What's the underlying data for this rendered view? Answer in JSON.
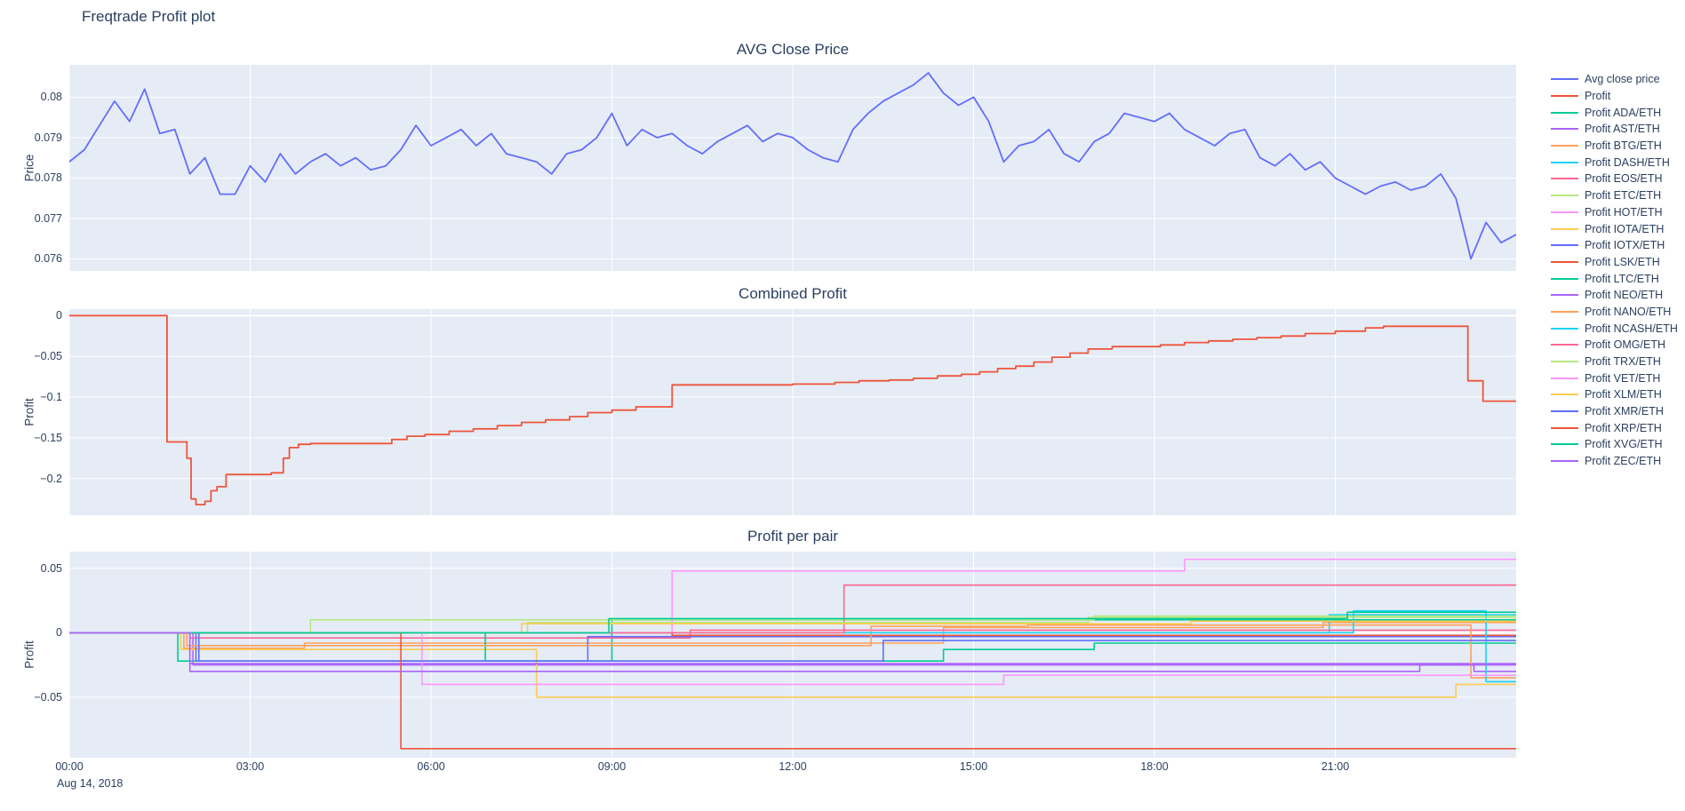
{
  "page": {
    "title": "Freqtrade Profit plot"
  },
  "colors": {
    "background": "#ffffff",
    "plot_bg": "#e5ecf6",
    "grid": "#ffffff",
    "text": "#2a3f5f",
    "palette": [
      "#636efa",
      "#EF553B",
      "#00cc96",
      "#ab63fa",
      "#FFA15A",
      "#19d3f3",
      "#FF6692",
      "#B6E880",
      "#FF97FF",
      "#FECB52"
    ]
  },
  "x_axis": {
    "range": [
      0,
      24
    ],
    "ticks": [
      "00:00",
      "03:00",
      "06:00",
      "09:00",
      "12:00",
      "15:00",
      "18:00",
      "21:00"
    ],
    "tick_hours": [
      0,
      3,
      6,
      9,
      12,
      15,
      18,
      21
    ],
    "date_label": "Aug 14, 2018"
  },
  "legend": {
    "position": "right",
    "items": [
      {
        "label": "Avg close price",
        "color": "#636efa"
      },
      {
        "label": "Profit",
        "color": "#EF553B"
      },
      {
        "label": "Profit ADA/ETH",
        "color": "#00cc96"
      },
      {
        "label": "Profit AST/ETH",
        "color": "#ab63fa"
      },
      {
        "label": "Profit BTG/ETH",
        "color": "#FFA15A"
      },
      {
        "label": "Profit DASH/ETH",
        "color": "#19d3f3"
      },
      {
        "label": "Profit EOS/ETH",
        "color": "#FF6692"
      },
      {
        "label": "Profit ETC/ETH",
        "color": "#B6E880"
      },
      {
        "label": "Profit HOT/ETH",
        "color": "#FF97FF"
      },
      {
        "label": "Profit IOTA/ETH",
        "color": "#FECB52"
      },
      {
        "label": "Profit IOTX/ETH",
        "color": "#636efa"
      },
      {
        "label": "Profit LSK/ETH",
        "color": "#EF553B"
      },
      {
        "label": "Profit LTC/ETH",
        "color": "#00cc96"
      },
      {
        "label": "Profit NEO/ETH",
        "color": "#ab63fa"
      },
      {
        "label": "Profit NANO/ETH",
        "color": "#FFA15A"
      },
      {
        "label": "Profit NCASH/ETH",
        "color": "#19d3f3"
      },
      {
        "label": "Profit OMG/ETH",
        "color": "#FF6692"
      },
      {
        "label": "Profit TRX/ETH",
        "color": "#B6E880"
      },
      {
        "label": "Profit VET/ETH",
        "color": "#FF97FF"
      },
      {
        "label": "Profit XLM/ETH",
        "color": "#FECB52"
      },
      {
        "label": "Profit XMR/ETH",
        "color": "#636efa"
      },
      {
        "label": "Profit XRP/ETH",
        "color": "#EF553B"
      },
      {
        "label": "Profit XVG/ETH",
        "color": "#00cc96"
      },
      {
        "label": "Profit ZEC/ETH",
        "color": "#ab63fa"
      }
    ]
  },
  "chart_data": [
    {
      "type": "line",
      "title": "AVG Close Price",
      "ylabel": "Price",
      "yticks": [
        0.08,
        0.079,
        0.078,
        0.077,
        0.076
      ],
      "ylim": [
        0.0757,
        0.0808
      ],
      "grid": true,
      "series": [
        {
          "name": "Avg close price",
          "color": "#636efa",
          "mode": "linear",
          "x_start": 0,
          "x_step": 0.25,
          "y": [
            0.0784,
            0.0787,
            0.0793,
            0.0799,
            0.0794,
            0.0802,
            0.0791,
            0.0792,
            0.0781,
            0.0785,
            0.0776,
            0.0776,
            0.0783,
            0.0779,
            0.0786,
            0.0781,
            0.0784,
            0.0786,
            0.0783,
            0.0785,
            0.0782,
            0.0783,
            0.0787,
            0.0793,
            0.0788,
            0.079,
            0.0792,
            0.0788,
            0.0791,
            0.0786,
            0.0785,
            0.0784,
            0.0781,
            0.0786,
            0.0787,
            0.079,
            0.0796,
            0.0788,
            0.0792,
            0.079,
            0.0791,
            0.0788,
            0.0786,
            0.0789,
            0.0791,
            0.0793,
            0.0789,
            0.0791,
            0.079,
            0.0787,
            0.0785,
            0.0784,
            0.0792,
            0.0796,
            0.0799,
            0.0801,
            0.0803,
            0.0806,
            0.0801,
            0.0798,
            0.08,
            0.0794,
            0.0784,
            0.0788,
            0.0789,
            0.0792,
            0.0786,
            0.0784,
            0.0789,
            0.0791,
            0.0796,
            0.0795,
            0.0794,
            0.0796,
            0.0792,
            0.079,
            0.0788,
            0.0791,
            0.0792,
            0.0785,
            0.0783,
            0.0786,
            0.0782,
            0.0784,
            0.078,
            0.0778,
            0.0776,
            0.0778,
            0.0779,
            0.0777,
            0.0778,
            0.0781,
            0.0775,
            0.076,
            0.0769,
            0.0764,
            0.0766
          ]
        }
      ]
    },
    {
      "type": "line",
      "title": "Combined Profit",
      "ylabel": "Profit",
      "yticks": [
        0,
        -0.05,
        -0.1,
        -0.15,
        -0.2
      ],
      "ylim": [
        -0.245,
        0.008
      ],
      "grid": true,
      "series": [
        {
          "name": "Profit",
          "color": "#EF553B",
          "mode": "step",
          "points": [
            [
              0,
              0
            ],
            [
              1.62,
              -0.155
            ],
            [
              1.95,
              -0.175
            ],
            [
              2.02,
              -0.225
            ],
            [
              2.1,
              -0.232
            ],
            [
              2.25,
              -0.228
            ],
            [
              2.35,
              -0.215
            ],
            [
              2.45,
              -0.21
            ],
            [
              2.6,
              -0.195
            ],
            [
              3.35,
              -0.193
            ],
            [
              3.55,
              -0.175
            ],
            [
              3.65,
              -0.162
            ],
            [
              3.8,
              -0.158
            ],
            [
              4.0,
              -0.157
            ],
            [
              5.35,
              -0.152
            ],
            [
              5.6,
              -0.148
            ],
            [
              5.9,
              -0.146
            ],
            [
              6.3,
              -0.142
            ],
            [
              6.7,
              -0.139
            ],
            [
              7.1,
              -0.135
            ],
            [
              7.5,
              -0.131
            ],
            [
              7.9,
              -0.128
            ],
            [
              8.3,
              -0.124
            ],
            [
              8.6,
              -0.119
            ],
            [
              9.0,
              -0.116
            ],
            [
              9.4,
              -0.112
            ],
            [
              10.0,
              -0.085
            ],
            [
              12.0,
              -0.084
            ],
            [
              12.7,
              -0.082
            ],
            [
              13.1,
              -0.08
            ],
            [
              13.6,
              -0.079
            ],
            [
              14.0,
              -0.077
            ],
            [
              14.4,
              -0.074
            ],
            [
              14.8,
              -0.072
            ],
            [
              15.1,
              -0.069
            ],
            [
              15.4,
              -0.065
            ],
            [
              15.7,
              -0.062
            ],
            [
              16.0,
              -0.057
            ],
            [
              16.3,
              -0.051
            ],
            [
              16.6,
              -0.046
            ],
            [
              16.9,
              -0.041
            ],
            [
              17.3,
              -0.038
            ],
            [
              18.1,
              -0.036
            ],
            [
              18.5,
              -0.033
            ],
            [
              18.9,
              -0.031
            ],
            [
              19.3,
              -0.029
            ],
            [
              19.7,
              -0.027
            ],
            [
              20.1,
              -0.025
            ],
            [
              20.5,
              -0.022
            ],
            [
              21.0,
              -0.019
            ],
            [
              21.5,
              -0.015
            ],
            [
              21.8,
              -0.013
            ],
            [
              23.2,
              -0.08
            ],
            [
              23.45,
              -0.105
            ],
            [
              24,
              -0.106
            ]
          ]
        }
      ]
    },
    {
      "type": "line",
      "title": "Profit per pair",
      "ylabel": "Profit",
      "yticks": [
        0.05,
        0,
        -0.05
      ],
      "ylim": [
        -0.097,
        0.063
      ],
      "grid": true,
      "series": [
        {
          "name": "Profit ADA/ETH",
          "color": "#00cc96",
          "mode": "step",
          "points": [
            [
              0,
              0
            ],
            [
              1.8,
              -0.022
            ],
            [
              9.0,
              0.01
            ],
            [
              24,
              0.01
            ]
          ]
        },
        {
          "name": "Profit AST/ETH",
          "color": "#ab63fa",
          "mode": "step",
          "points": [
            [
              0,
              0
            ],
            [
              2.05,
              -0.025
            ],
            [
              23.3,
              -0.03
            ],
            [
              24,
              -0.03
            ]
          ]
        },
        {
          "name": "Profit BTG/ETH",
          "color": "#FFA15A",
          "mode": "step",
          "points": [
            [
              0,
              0
            ],
            [
              1.9,
              -0.012
            ],
            [
              3.9,
              -0.008
            ],
            [
              14.5,
              0.004
            ],
            [
              20.8,
              0.008
            ],
            [
              24,
              0.008
            ]
          ]
        },
        {
          "name": "Profit DASH/ETH",
          "color": "#19d3f3",
          "mode": "step",
          "points": [
            [
              0,
              0
            ],
            [
              20.9,
              0.014
            ],
            [
              24,
              0.014
            ]
          ]
        },
        {
          "name": "Profit EOS/ETH",
          "color": "#FF6692",
          "mode": "step",
          "points": [
            [
              0,
              0
            ],
            [
              2.0,
              -0.004
            ],
            [
              10.3,
              0.002
            ],
            [
              24,
              0.002
            ]
          ]
        },
        {
          "name": "Profit ETC/ETH",
          "color": "#B6E880",
          "mode": "step",
          "points": [
            [
              0,
              0
            ],
            [
              4.0,
              0.01
            ],
            [
              17.0,
              0.013
            ],
            [
              24,
              0.013
            ]
          ]
        },
        {
          "name": "Profit HOT/ETH",
          "color": "#FF97FF",
          "mode": "step",
          "points": [
            [
              0,
              0
            ],
            [
              10.0,
              0.048
            ],
            [
              18.5,
              0.057
            ],
            [
              24,
              0.057
            ]
          ]
        },
        {
          "name": "Profit IOTA/ETH",
          "color": "#FECB52",
          "mode": "step",
          "points": [
            [
              0,
              0
            ],
            [
              1.85,
              -0.013
            ],
            [
              7.75,
              -0.05
            ],
            [
              23.0,
              -0.04
            ],
            [
              24,
              -0.04
            ]
          ]
        },
        {
          "name": "Profit IOTX/ETH",
          "color": "#636efa",
          "mode": "step",
          "points": [
            [
              0,
              0
            ],
            [
              2.1,
              -0.022
            ],
            [
              8.6,
              -0.003
            ],
            [
              24,
              -0.003
            ]
          ]
        },
        {
          "name": "Profit LSK/ETH",
          "color": "#EF553B",
          "mode": "step",
          "points": [
            [
              0,
              0
            ],
            [
              10.0,
              -0.002
            ],
            [
              24,
              -0.002
            ]
          ]
        },
        {
          "name": "Profit LTC/ETH",
          "color": "#00cc96",
          "mode": "step",
          "points": [
            [
              0,
              0
            ],
            [
              6.9,
              -0.022
            ],
            [
              14.5,
              -0.013
            ],
            [
              17.0,
              -0.008
            ],
            [
              24,
              -0.008
            ]
          ]
        },
        {
          "name": "Profit NEO/ETH",
          "color": "#ab63fa",
          "mode": "step",
          "points": [
            [
              0,
              0
            ],
            [
              2.0,
              -0.024
            ],
            [
              24,
              -0.024
            ]
          ]
        },
        {
          "name": "Profit NANO/ETH",
          "color": "#FFA15A",
          "mode": "step",
          "points": [
            [
              0,
              0
            ],
            [
              1.95,
              -0.01
            ],
            [
              13.3,
              0.005
            ],
            [
              15.9,
              0.006
            ],
            [
              23.25,
              -0.035
            ],
            [
              24,
              -0.035
            ]
          ]
        },
        {
          "name": "Profit NCASH/ETH",
          "color": "#19d3f3",
          "mode": "step",
          "points": [
            [
              0,
              0
            ],
            [
              21.3,
              0.017
            ],
            [
              23.5,
              -0.038
            ],
            [
              24,
              -0.038
            ]
          ]
        },
        {
          "name": "Profit OMG/ETH",
          "color": "#FF6692",
          "mode": "step",
          "points": [
            [
              0,
              0
            ],
            [
              12.85,
              0.037
            ],
            [
              24,
              0.037
            ]
          ]
        },
        {
          "name": "Profit TRX/ETH",
          "color": "#B6E880",
          "mode": "step",
          "points": [
            [
              0,
              0
            ],
            [
              7.6,
              0.008
            ],
            [
              16.9,
              0.012
            ],
            [
              24,
              0.012
            ]
          ]
        },
        {
          "name": "Profit VET/ETH",
          "color": "#FF97FF",
          "mode": "step",
          "points": [
            [
              0,
              0
            ],
            [
              5.85,
              -0.04
            ],
            [
              15.5,
              -0.033
            ],
            [
              24,
              -0.033
            ]
          ]
        },
        {
          "name": "Profit XLM/ETH",
          "color": "#FECB52",
          "mode": "step",
          "points": [
            [
              0,
              0
            ],
            [
              7.5,
              0.007
            ],
            [
              18.6,
              0.009
            ],
            [
              24,
              0.009
            ]
          ]
        },
        {
          "name": "Profit XMR/ETH",
          "color": "#636efa",
          "mode": "step",
          "points": [
            [
              0,
              0
            ],
            [
              2.15,
              -0.022
            ],
            [
              13.5,
              -0.006
            ],
            [
              24,
              -0.006
            ]
          ]
        },
        {
          "name": "Profit XRP/ETH",
          "color": "#EF553B",
          "mode": "step",
          "points": [
            [
              0,
              0
            ],
            [
              5.5,
              -0.09
            ],
            [
              24,
              -0.09
            ]
          ]
        },
        {
          "name": "Profit XVG/ETH",
          "color": "#00cc96",
          "mode": "step",
          "points": [
            [
              0,
              0
            ],
            [
              8.95,
              0.011
            ],
            [
              21.2,
              0.016
            ],
            [
              24,
              0.016
            ]
          ]
        },
        {
          "name": "Profit ZEC/ETH",
          "color": "#ab63fa",
          "mode": "step",
          "points": [
            [
              0,
              0
            ],
            [
              2.0,
              -0.03
            ],
            [
              22.4,
              -0.025
            ],
            [
              24,
              -0.025
            ]
          ]
        }
      ]
    }
  ]
}
